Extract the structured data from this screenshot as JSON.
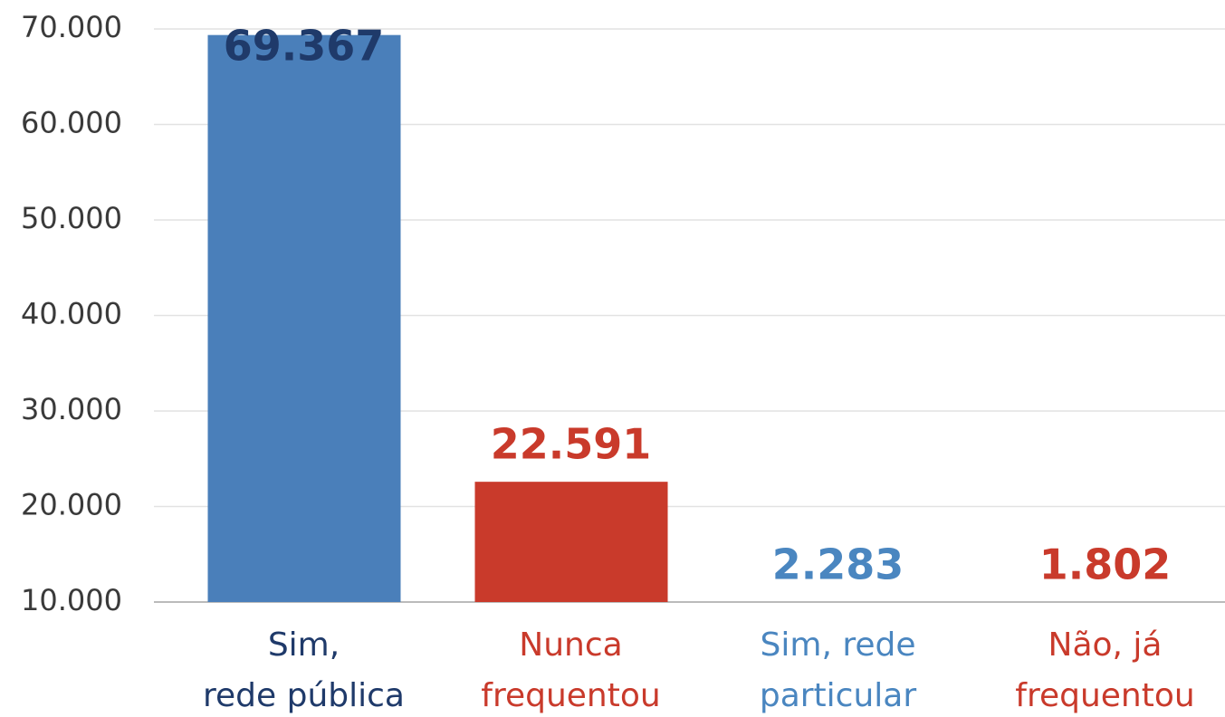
{
  "chart_data": {
    "type": "bar",
    "categories": [
      "Sim,\nrede pública",
      "Nunca\nfrequentou",
      "Sim, rede\nparticular",
      "Não, já\nfrequentou"
    ],
    "values": [
      69367,
      22591,
      2283,
      1802
    ],
    "value_labels": [
      "69.367",
      "22.591",
      "2.283",
      "1.802"
    ],
    "colors": [
      "#4a7fba",
      "#c93a2b",
      "#9dc3df",
      "#c93a2b"
    ],
    "label_colors": [
      "#1f3a6a",
      "#c93a2b",
      "#4a86c0",
      "#c93a2b"
    ],
    "ylim": [
      10000,
      70000
    ],
    "yticks": [
      {
        "value": 10000,
        "label": "10.000"
      },
      {
        "value": 20000,
        "label": "20.000"
      },
      {
        "value": 30000,
        "label": "30.000"
      },
      {
        "value": 40000,
        "label": "40.000"
      },
      {
        "value": 50000,
        "label": "50.000"
      },
      {
        "value": 60000,
        "label": "60.000"
      },
      {
        "value": 70000,
        "label": "70.000"
      }
    ],
    "grid": true
  }
}
